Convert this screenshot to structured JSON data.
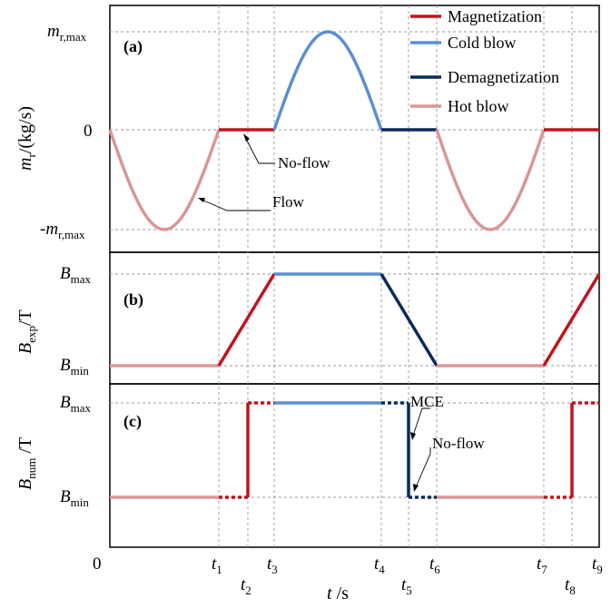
{
  "colors": {
    "magnetization": "#c0141e",
    "cold_blow": "#5b8fd4",
    "demagnetization": "#0b2a5a",
    "hot_blow": "#d99696"
  },
  "legend": [
    "Magnetization",
    "Cold blow",
    "Demagnetization",
    "Hot blow"
  ],
  "panels": {
    "a": {
      "label": "(a)",
      "ylabel_main": "m",
      "ylabel_sub": "r",
      "ylabel_tail": "/(kg/s)",
      "yticks": [
        {
          "main": "m",
          "sub": "r,max",
          "prefix": ""
        },
        {
          "main": "0",
          "sub": "",
          "prefix": ""
        },
        {
          "main": "m",
          "sub": "r,max",
          "prefix": "-"
        }
      ],
      "annotations": [
        "No-flow",
        "Flow"
      ]
    },
    "b": {
      "label": "(b)",
      "ylabel_main": "B",
      "ylabel_sub": "exp",
      "ylabel_tail": "/T",
      "yticks": [
        {
          "main": "B",
          "sub": "max"
        },
        {
          "main": "B",
          "sub": "min"
        }
      ]
    },
    "c": {
      "label": "(c)",
      "ylabel_main": "B",
      "ylabel_sub": "num",
      "ylabel_tail": " /T",
      "yticks": [
        {
          "main": "B",
          "sub": "max"
        },
        {
          "main": "B",
          "sub": "min"
        }
      ],
      "annotations": [
        "MCE",
        "No-flow"
      ]
    }
  },
  "xaxis": {
    "origin": "0",
    "label_main": "t",
    "label_tail": " /s",
    "ticks": [
      {
        "main": "t",
        "sub": "1"
      },
      {
        "main": "t",
        "sub": "2"
      },
      {
        "main": "t",
        "sub": "3"
      },
      {
        "main": "t",
        "sub": "4"
      },
      {
        "main": "t",
        "sub": "5"
      },
      {
        "main": "t",
        "sub": "6"
      },
      {
        "main": "t",
        "sub": "7"
      },
      {
        "main": "t",
        "sub": "8"
      },
      {
        "main": "t",
        "sub": "9"
      }
    ]
  }
}
